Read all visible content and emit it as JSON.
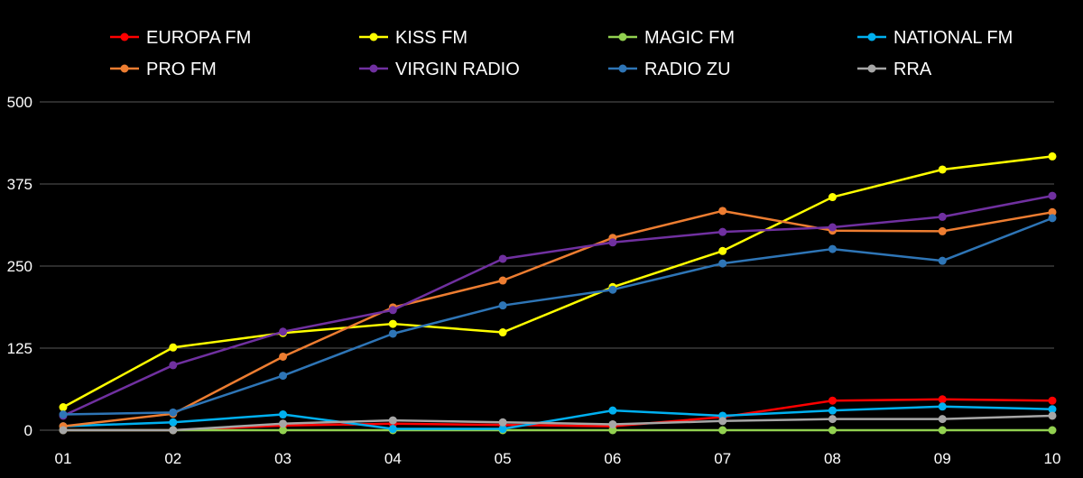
{
  "chart_data": {
    "type": "line",
    "title": "",
    "xlabel": "",
    "ylabel": "",
    "categories": [
      "01",
      "02",
      "03",
      "04",
      "05",
      "06",
      "07",
      "08",
      "09",
      "10"
    ],
    "yticks": [
      "0",
      "125",
      "250",
      "375",
      "500"
    ],
    "ylim": [
      0,
      500
    ],
    "grid": true,
    "legend_position": "top",
    "series": [
      {
        "name": "EUROPA FM",
        "color": "#ff0000",
        "values": [
          0,
          0,
          7,
          10,
          8,
          6,
          20,
          45,
          47,
          45
        ]
      },
      {
        "name": "KISS FM",
        "color": "#ffff00",
        "values": [
          35,
          126,
          148,
          162,
          149,
          218,
          273,
          355,
          397,
          417
        ]
      },
      {
        "name": "MAGIC FM",
        "color": "#92d050",
        "values": [
          0,
          0,
          0,
          0,
          0,
          0,
          0,
          0,
          0,
          0
        ]
      },
      {
        "name": "NATIONAL FM",
        "color": "#00b0f0",
        "values": [
          6,
          12,
          24,
          2,
          2,
          30,
          22,
          30,
          36,
          32
        ]
      },
      {
        "name": "PRO FM",
        "color": "#ed7d31",
        "values": [
          6,
          25,
          112,
          187,
          228,
          293,
          334,
          304,
          303,
          332
        ]
      },
      {
        "name": "VIRGIN RADIO",
        "color": "#7030a0",
        "values": [
          22,
          99,
          150,
          183,
          261,
          286,
          302,
          309,
          325,
          357
        ]
      },
      {
        "name": "RADIO ZU",
        "color": "#2e75b6",
        "values": [
          24,
          27,
          83,
          147,
          190,
          214,
          254,
          276,
          258,
          323
        ]
      },
      {
        "name": "RRA",
        "color": "#a6a6a6",
        "values": [
          0,
          0,
          10,
          15,
          12,
          9,
          14,
          17,
          17,
          22
        ]
      }
    ]
  }
}
